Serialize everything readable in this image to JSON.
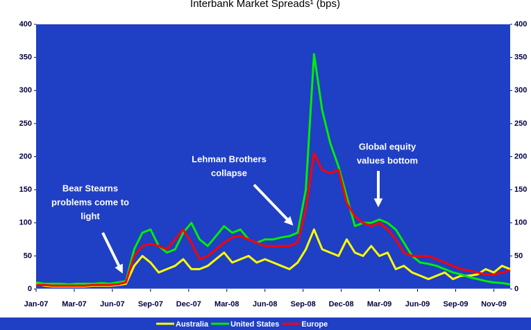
{
  "chart_data": {
    "type": "line",
    "title": "Interbank Market Spreads¹ (bps)",
    "x": [
      0,
      0.6,
      1.2,
      1.8,
      2.4,
      3,
      3.6,
      4.2,
      4.8,
      5.4,
      6,
      6.6,
      7.2,
      7.8,
      8.4,
      9,
      9.6,
      10.2,
      10.8,
      11.4,
      12,
      12.6,
      13.2,
      13.8,
      14.4,
      15,
      15.6,
      16.2,
      16.8,
      17.4,
      18,
      18.6,
      19.2,
      19.8,
      20.4,
      21,
      21.6,
      22.2,
      22.8,
      23.4,
      24,
      24.6,
      25.2,
      25.8,
      26.4,
      27,
      27.6,
      28.2,
      28.8,
      29.4,
      30,
      30.6,
      31.2,
      31.8,
      32.4,
      33,
      33.6,
      34.2,
      34.8
    ],
    "series": [
      {
        "name": "Australia",
        "color": "#ffff00",
        "values": [
          8,
          5,
          4,
          4,
          4,
          4,
          4,
          5,
          5,
          5,
          6,
          8,
          35,
          50,
          40,
          25,
          30,
          35,
          45,
          30,
          30,
          35,
          45,
          55,
          40,
          45,
          50,
          40,
          45,
          40,
          35,
          30,
          40,
          60,
          90,
          60,
          55,
          50,
          75,
          55,
          50,
          65,
          50,
          55,
          30,
          35,
          25,
          20,
          15,
          20,
          25,
          15,
          20,
          20,
          22,
          30,
          25,
          35,
          30
        ]
      },
      {
        "name": "United States",
        "color": "#00ee00",
        "values": [
          10,
          8,
          8,
          8,
          7,
          8,
          8,
          8,
          9,
          8,
          10,
          12,
          60,
          85,
          90,
          65,
          55,
          60,
          85,
          100,
          75,
          65,
          80,
          95,
          85,
          90,
          75,
          70,
          75,
          75,
          78,
          80,
          85,
          150,
          355,
          270,
          220,
          185,
          140,
          95,
          100,
          100,
          105,
          100,
          90,
          70,
          50,
          40,
          38,
          35,
          30,
          25,
          22,
          18,
          15,
          12,
          10,
          9,
          7
        ]
      },
      {
        "name": "Europe",
        "color": "#ff0000",
        "values": [
          6,
          6,
          5,
          5,
          5,
          5,
          5,
          6,
          6,
          6,
          7,
          10,
          50,
          65,
          68,
          65,
          60,
          75,
          90,
          70,
          45,
          50,
          60,
          70,
          78,
          80,
          75,
          70,
          65,
          65,
          65,
          65,
          70,
          120,
          205,
          180,
          175,
          180,
          130,
          110,
          100,
          95,
          100,
          90,
          75,
          55,
          50,
          50,
          50,
          45,
          40,
          35,
          30,
          28,
          25,
          22,
          22,
          25,
          28
        ]
      }
    ],
    "xlim": [
      0,
      34.8
    ],
    "xticks": [
      {
        "value": 0,
        "label": "Jan-07"
      },
      {
        "value": 2.8,
        "label": "Mar-07"
      },
      {
        "value": 5.6,
        "label": "Jun-07"
      },
      {
        "value": 8.4,
        "label": "Sep-07"
      },
      {
        "value": 11.2,
        "label": "Dec-07"
      },
      {
        "value": 14,
        "label": "Mar-08"
      },
      {
        "value": 16.8,
        "label": "Jun-08"
      },
      {
        "value": 19.6,
        "label": "Sep-08"
      },
      {
        "value": 22.4,
        "label": "Dec-08"
      },
      {
        "value": 25.2,
        "label": "Mar-09"
      },
      {
        "value": 28,
        "label": "Jun-09"
      },
      {
        "value": 30.8,
        "label": "Sep-09"
      },
      {
        "value": 33.6,
        "label": "Nov-09"
      }
    ],
    "ylim": [
      0,
      400
    ],
    "yticks": [
      0,
      50,
      100,
      150,
      200,
      250,
      300,
      350,
      400
    ],
    "annotations": [
      {
        "lines": [
          "Bear Stearns",
          "problems come to",
          "light"
        ]
      },
      {
        "lines": [
          "Lehman Brothers",
          "collapse"
        ]
      },
      {
        "lines": [
          "Global equity",
          "values bottom"
        ]
      }
    ],
    "legend": "bottom"
  }
}
